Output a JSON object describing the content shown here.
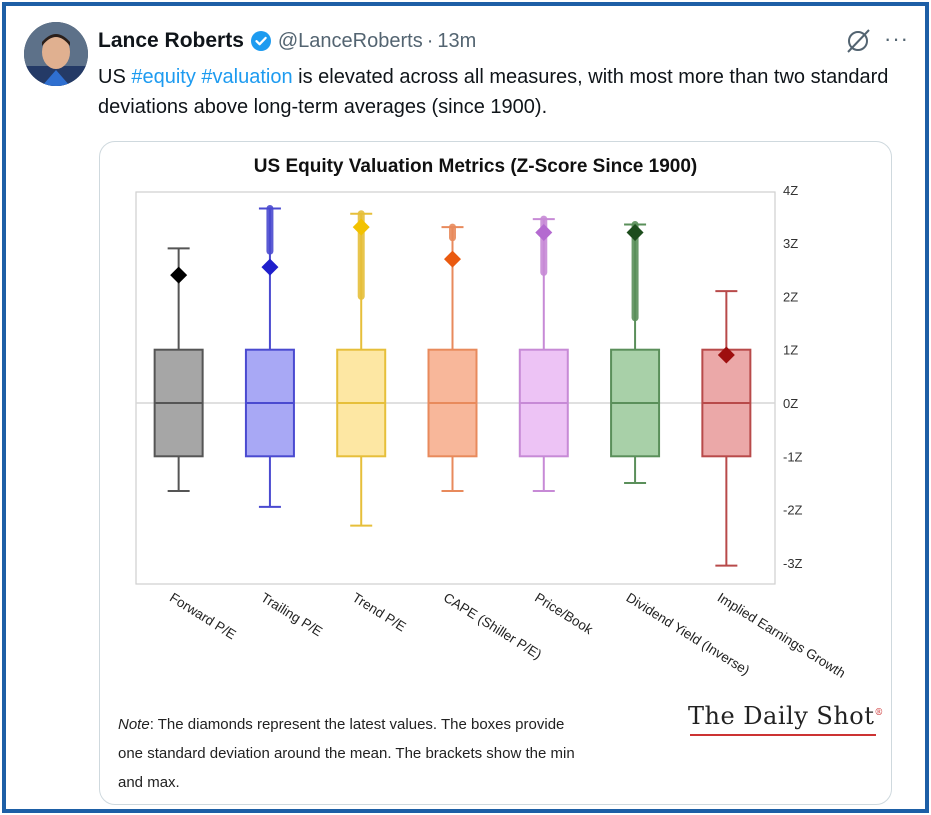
{
  "tweet": {
    "author_name": "Lance Roberts",
    "handle": "@LanceRoberts",
    "separator": "·",
    "time": "13m",
    "text_prefix": "US ",
    "hashtag1": "#equity",
    "hashtag2": "#valuation",
    "text_rest": " is elevated across all measures, with most more than two standard deviations above long-term averages (since 1900).",
    "more_label": "···"
  },
  "chart_data": {
    "type": "box",
    "title": "US Equity Valuation Metrics (Z-Score Since 1900)",
    "y_ticks": [
      "4Z",
      "3Z",
      "2Z",
      "1Z",
      "0Z",
      "-1Z",
      "-2Z",
      "-3Z"
    ],
    "ylim": [
      -3,
      4
    ],
    "grid": false,
    "categories": [
      "Forward P/E",
      "Trailing P/E",
      "Trend P/E",
      "CAPE (Shiller P/E)",
      "Price/Book",
      "Dividend Yield (Inverse)",
      "Implied Earnings Growth"
    ],
    "series": [
      {
        "fill": "#a6a6a6",
        "stroke": "#555555",
        "diamond": "#000000",
        "min": -1.65,
        "max": 2.9,
        "latest": 2.4,
        "q1": -1,
        "q3": 1,
        "outliers_from": null
      },
      {
        "fill": "#a8a8f5",
        "stroke": "#4a4ad0",
        "diamond": "#1f1fcc",
        "min": -1.95,
        "max": 3.65,
        "latest": 2.55,
        "q1": -1,
        "q3": 1,
        "outliers_from": 2.85
      },
      {
        "fill": "#fde7a3",
        "stroke": "#e6bf3a",
        "diamond": "#f2c200",
        "min": -2.3,
        "max": 3.55,
        "latest": 3.3,
        "q1": -1,
        "q3": 1,
        "outliers_from": 2.0
      },
      {
        "fill": "#f8b79a",
        "stroke": "#e88a5c",
        "diamond": "#ea5a10",
        "min": -1.65,
        "max": 3.3,
        "latest": 2.7,
        "q1": -1,
        "q3": 1,
        "outliers_from": 3.1
      },
      {
        "fill": "#edc3f5",
        "stroke": "#c78ad6",
        "diamond": "#b46ad0",
        "min": -1.65,
        "max": 3.45,
        "latest": 3.2,
        "q1": -1,
        "q3": 1,
        "outliers_from": 2.45
      },
      {
        "fill": "#a8d0a8",
        "stroke": "#5a8f5a",
        "diamond": "#1d4d1d",
        "min": -1.5,
        "max": 3.35,
        "latest": 3.2,
        "q1": -1,
        "q3": 1,
        "outliers_from": 1.6
      },
      {
        "fill": "#eba8a8",
        "stroke": "#b84a4a",
        "diamond": "#9e0f0f",
        "min": -3.05,
        "max": 2.1,
        "latest": 0.9,
        "q1": -1,
        "q3": 1,
        "outliers_from": null
      }
    ]
  },
  "note": {
    "label": "Note",
    "text": ": The diamonds represent the latest values. The boxes provide one standard deviation around the mean. The brackets show the min and max."
  },
  "logo": {
    "text": "The Daily Shot",
    "mark": "®"
  }
}
